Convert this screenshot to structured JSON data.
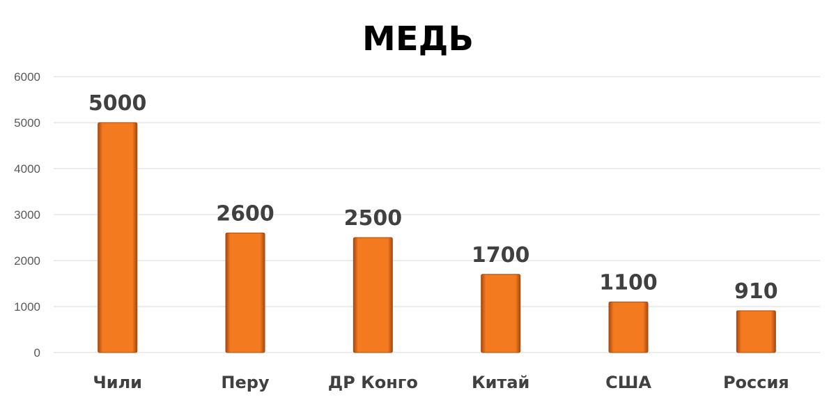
{
  "chart_data": {
    "type": "bar",
    "title": "МЕДЬ",
    "categories": [
      "Чили",
      "Перу",
      "ДР Конго",
      "Китай",
      "США",
      "Россия"
    ],
    "values": [
      5000,
      2600,
      2500,
      1700,
      1100,
      910
    ],
    "data_labels": [
      "5000",
      "2600",
      "2500",
      "1700",
      "1100",
      "910"
    ],
    "ylim": [
      0,
      6000
    ],
    "yticks": [
      0,
      1000,
      2000,
      3000,
      4000,
      5000,
      6000
    ],
    "grid": true,
    "legend": "none",
    "bar_color": "#F47A20",
    "bar_dark": "#A84A10"
  }
}
